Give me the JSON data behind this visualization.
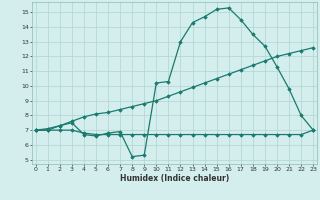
{
  "line1_x": [
    0,
    1,
    2,
    3,
    4,
    5,
    6,
    7,
    8,
    9,
    10,
    11,
    12,
    13,
    14,
    15,
    16,
    17,
    18,
    19,
    20,
    21,
    22,
    23
  ],
  "line1_y": [
    7.0,
    7.0,
    7.3,
    7.5,
    6.7,
    6.6,
    6.8,
    6.9,
    5.2,
    5.3,
    10.2,
    10.3,
    13.0,
    14.3,
    14.7,
    15.2,
    15.3,
    14.5,
    13.5,
    12.7,
    11.3,
    9.8,
    8.0,
    7.0
  ],
  "line2_x": [
    0,
    1,
    2,
    3,
    4,
    5,
    6,
    7,
    8,
    9,
    10,
    11,
    12,
    13,
    14,
    15,
    16,
    17,
    18,
    19,
    20,
    21,
    22,
    23
  ],
  "line2_y": [
    7.0,
    7.1,
    7.3,
    7.6,
    7.9,
    8.1,
    8.2,
    8.4,
    8.6,
    8.8,
    9.0,
    9.3,
    9.6,
    9.9,
    10.2,
    10.5,
    10.8,
    11.1,
    11.4,
    11.7,
    12.0,
    12.2,
    12.4,
    12.6
  ],
  "line3_x": [
    0,
    1,
    2,
    3,
    4,
    5,
    6,
    7,
    8,
    9,
    10,
    11,
    12,
    13,
    14,
    15,
    16,
    17,
    18,
    19,
    20,
    21,
    22,
    23
  ],
  "line3_y": [
    7.0,
    7.0,
    7.0,
    7.0,
    6.8,
    6.7,
    6.7,
    6.7,
    6.7,
    6.7,
    6.7,
    6.7,
    6.7,
    6.7,
    6.7,
    6.7,
    6.7,
    6.7,
    6.7,
    6.7,
    6.7,
    6.7,
    6.7,
    7.0
  ],
  "line_color": "#1a7a6e",
  "bg_color": "#d4eeee",
  "grid_color": "#aed4d4",
  "xlabel": "Humidex (Indice chaleur)",
  "ylabel_ticks": [
    5,
    6,
    7,
    8,
    9,
    10,
    11,
    12,
    13,
    14,
    15
  ],
  "xticks": [
    0,
    1,
    2,
    3,
    4,
    5,
    6,
    7,
    8,
    9,
    10,
    11,
    12,
    13,
    14,
    15,
    16,
    17,
    18,
    19,
    20,
    21,
    22,
    23
  ],
  "xlim": [
    -0.3,
    23.3
  ],
  "ylim": [
    4.7,
    15.7
  ]
}
